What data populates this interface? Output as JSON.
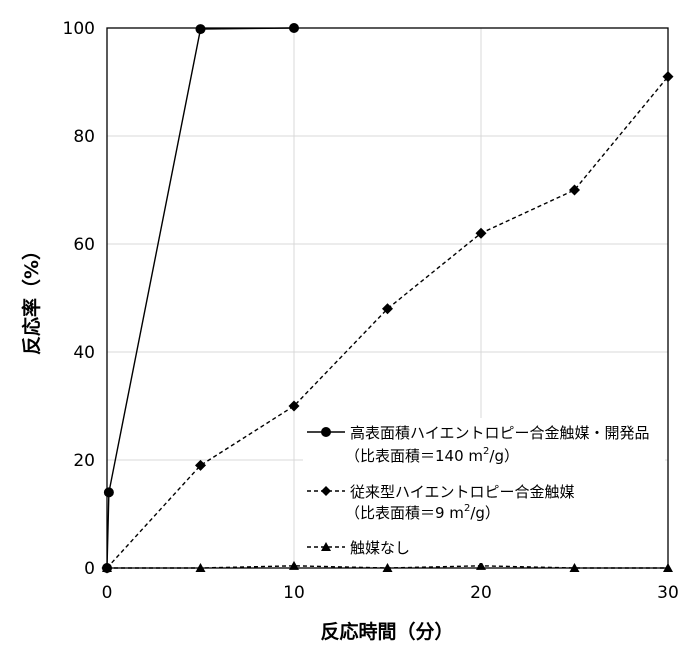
{
  "chart_data": {
    "type": "line",
    "xlabel": "反応時間（分）",
    "ylabel": "反応率（%）",
    "xlim": [
      0,
      30
    ],
    "ylim": [
      0,
      100
    ],
    "x_ticks": [
      "0",
      "10",
      "20",
      "30"
    ],
    "y_ticks": [
      "0",
      "20",
      "40",
      "60",
      "80",
      "100"
    ],
    "grid": true,
    "legend_position": "right",
    "series": [
      {
        "name": "高表面積ハイエントロピー合金触媒・開発品",
        "name_line2_prefix": "（比表面積＝140 m",
        "name_line2_sup": "2",
        "name_line2_suffix": "/g）",
        "marker": "circle",
        "line_style": "solid",
        "points": [
          [
            0,
            0
          ],
          [
            0.1,
            14
          ],
          [
            5,
            99.8
          ],
          [
            10,
            100
          ]
        ]
      },
      {
        "name": "従来型ハイエントロピー合金触媒",
        "name_line2_prefix": "（比表面積＝9 m",
        "name_line2_sup": "2",
        "name_line2_suffix": "/g）",
        "marker": "diamond",
        "line_style": "dashed",
        "points": [
          [
            0,
            0
          ],
          [
            5,
            19
          ],
          [
            10,
            30
          ],
          [
            15,
            48
          ],
          [
            20,
            62
          ],
          [
            25,
            70
          ],
          [
            30,
            91
          ]
        ]
      },
      {
        "name": "触媒なし",
        "marker": "triangle",
        "line_style": "dashed",
        "points": [
          [
            0,
            0
          ],
          [
            5,
            0
          ],
          [
            10,
            0.4
          ],
          [
            15,
            0
          ],
          [
            20,
            0.4
          ],
          [
            25,
            0
          ],
          [
            30,
            0
          ]
        ]
      }
    ]
  }
}
